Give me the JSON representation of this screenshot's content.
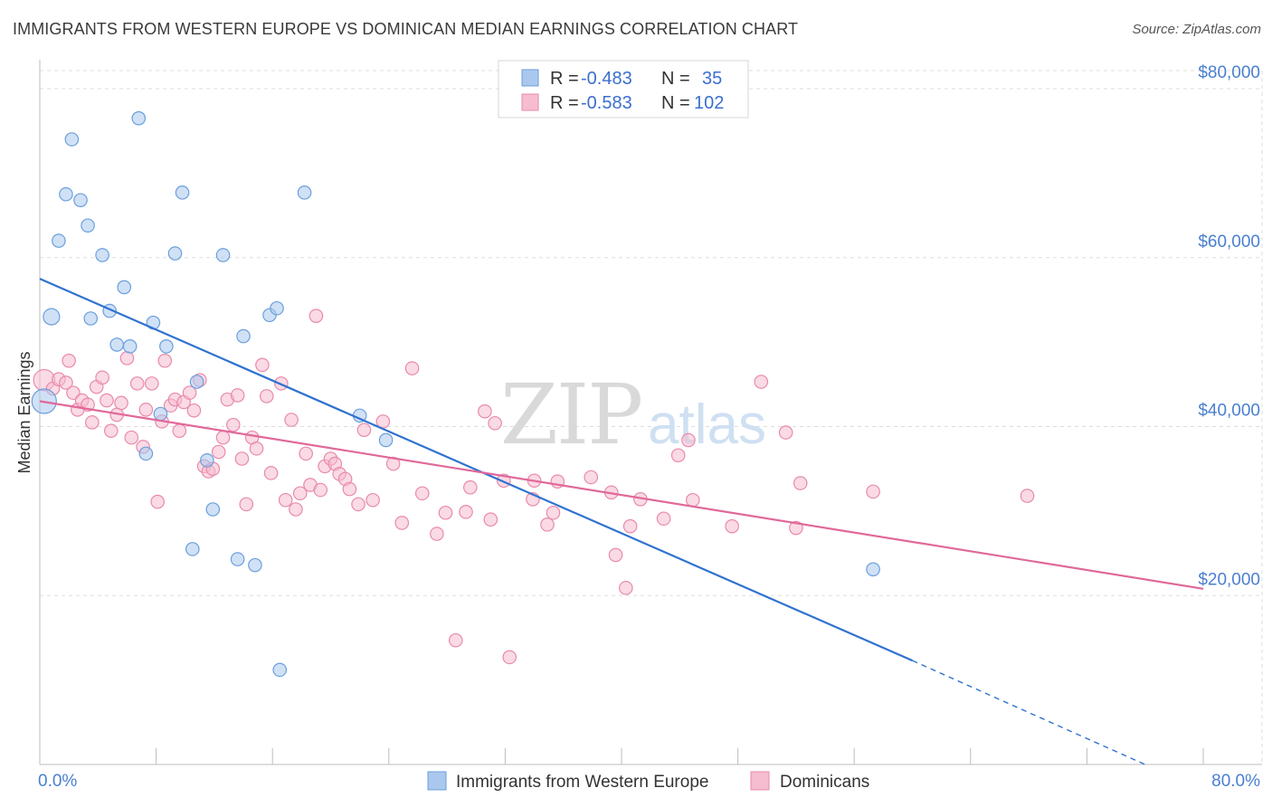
{
  "header": {
    "title": "IMMIGRANTS FROM WESTERN EUROPE VS DOMINICAN MEDIAN EARNINGS CORRELATION CHART",
    "source": "Source: ZipAtlas.com"
  },
  "watermark": {
    "zip": "ZIP",
    "atlas": "atlas"
  },
  "legend": {
    "rows": [
      {
        "r_label": "R =",
        "r_value": "-0.483",
        "n_label": "N =",
        "n_value": "35"
      },
      {
        "r_label": "R =",
        "r_value": "-0.583",
        "n_label": "N =",
        "n_value": "102"
      }
    ]
  },
  "colors": {
    "blue_fill": "#aac8ee",
    "blue_stroke": "#6b9fdc",
    "blue_line": "#2f72d1",
    "pink_fill": "#f6bcd0",
    "pink_stroke": "#e98aab",
    "pink_line": "#e0699a",
    "grid": "#dddddd",
    "tick_label": "#4a7fd0"
  },
  "chart_data": {
    "type": "scatter",
    "title": "IMMIGRANTS FROM WESTERN EUROPE VS DOMINICAN MEDIAN EARNINGS CORRELATION CHART",
    "xlabel": "",
    "ylabel": "Median Earnings",
    "xlim": [
      0,
      80
    ],
    "ylim": [
      0,
      83000
    ],
    "x_tick_labels": [
      "0.0%",
      "80.0%"
    ],
    "y_ticks": [
      20000,
      40000,
      60000,
      80000
    ],
    "y_tick_labels": [
      "$20,000",
      "$40,000",
      "$60,000",
      "$80,000"
    ],
    "grid": true,
    "legend_position": "top-center",
    "series": [
      {
        "name": "Immigrants from Western Europe",
        "color": "blue",
        "r": -0.483,
        "n": 35,
        "points": [
          [
            0.3,
            43000,
            1.5
          ],
          [
            0.8,
            53000,
            1.0
          ],
          [
            1.3,
            62000,
            0.8
          ],
          [
            1.8,
            67500,
            0.8
          ],
          [
            2.2,
            74000,
            0.8
          ],
          [
            2.8,
            66800,
            0.8
          ],
          [
            3.3,
            63800,
            0.8
          ],
          [
            3.5,
            52800,
            0.8
          ],
          [
            4.3,
            60300,
            0.8
          ],
          [
            4.8,
            53700,
            0.8
          ],
          [
            5.3,
            49700,
            0.8
          ],
          [
            5.8,
            56500,
            0.8
          ],
          [
            6.2,
            49500,
            0.8
          ],
          [
            6.8,
            76500,
            0.8
          ],
          [
            7.3,
            36800,
            0.8
          ],
          [
            7.8,
            52300,
            0.8
          ],
          [
            8.3,
            41500,
            0.8
          ],
          [
            8.7,
            49500,
            0.8
          ],
          [
            9.3,
            60500,
            0.8
          ],
          [
            9.8,
            67700,
            0.8
          ],
          [
            10.5,
            25500,
            0.8
          ],
          [
            10.8,
            45300,
            0.8
          ],
          [
            11.5,
            36000,
            0.8
          ],
          [
            11.9,
            30200,
            0.8
          ],
          [
            12.6,
            60300,
            0.8
          ],
          [
            13.6,
            24300,
            0.8
          ],
          [
            14.0,
            50700,
            0.8
          ],
          [
            14.8,
            23600,
            0.8
          ],
          [
            15.8,
            53200,
            0.8
          ],
          [
            16.3,
            54000,
            0.8
          ],
          [
            16.5,
            11200,
            0.8
          ],
          [
            18.2,
            67700,
            0.8
          ],
          [
            22.0,
            41300,
            0.8
          ],
          [
            23.8,
            38400,
            0.8
          ],
          [
            57.3,
            23100,
            0.8
          ]
        ],
        "trend": {
          "x0": 0,
          "y0": 57500,
          "x1": 60,
          "y1": 12300,
          "dashed_to_x": 76,
          "dashed_to_y": 0
        }
      },
      {
        "name": "Dominicans",
        "color": "pink",
        "r": -0.583,
        "n": 102,
        "points": [
          [
            0.3,
            45500,
            1.3
          ],
          [
            0.9,
            44500,
            0.8
          ],
          [
            1.3,
            45600,
            0.8
          ],
          [
            1.8,
            45200,
            0.8
          ],
          [
            2.0,
            47800,
            0.8
          ],
          [
            2.3,
            44000,
            0.8
          ],
          [
            2.6,
            42000,
            0.8
          ],
          [
            2.9,
            43100,
            0.8
          ],
          [
            3.3,
            42600,
            0.8
          ],
          [
            3.6,
            40500,
            0.8
          ],
          [
            3.9,
            44700,
            0.8
          ],
          [
            4.3,
            45800,
            0.8
          ],
          [
            4.6,
            43100,
            0.8
          ],
          [
            4.9,
            39500,
            0.8
          ],
          [
            5.3,
            41400,
            0.8
          ],
          [
            5.6,
            42800,
            0.8
          ],
          [
            6.0,
            48100,
            0.8
          ],
          [
            6.3,
            38700,
            0.8
          ],
          [
            6.7,
            45100,
            0.8
          ],
          [
            7.1,
            37600,
            0.8
          ],
          [
            7.3,
            42000,
            0.8
          ],
          [
            7.7,
            45100,
            0.8
          ],
          [
            8.1,
            31100,
            0.8
          ],
          [
            8.4,
            40600,
            0.8
          ],
          [
            8.6,
            47800,
            0.8
          ],
          [
            9.0,
            42500,
            0.8
          ],
          [
            9.3,
            43200,
            0.8
          ],
          [
            9.6,
            39500,
            0.8
          ],
          [
            9.9,
            42900,
            0.8
          ],
          [
            10.3,
            44000,
            0.8
          ],
          [
            10.6,
            41900,
            0.8
          ],
          [
            11.0,
            45500,
            0.8
          ],
          [
            11.3,
            35300,
            0.8
          ],
          [
            11.6,
            34700,
            0.8
          ],
          [
            11.9,
            35000,
            0.8
          ],
          [
            12.3,
            37000,
            0.8
          ],
          [
            12.6,
            38700,
            0.8
          ],
          [
            12.9,
            43200,
            0.8
          ],
          [
            13.3,
            40200,
            0.8
          ],
          [
            13.6,
            43700,
            0.8
          ],
          [
            13.9,
            36200,
            0.8
          ],
          [
            14.2,
            30800,
            0.8
          ],
          [
            14.6,
            38700,
            0.8
          ],
          [
            14.9,
            37400,
            0.8
          ],
          [
            15.3,
            47300,
            0.8
          ],
          [
            15.6,
            43600,
            0.8
          ],
          [
            15.9,
            34500,
            0.8
          ],
          [
            16.6,
            45100,
            0.8
          ],
          [
            16.9,
            31300,
            0.8
          ],
          [
            17.3,
            40800,
            0.8
          ],
          [
            17.6,
            30200,
            0.8
          ],
          [
            17.9,
            32100,
            0.8
          ],
          [
            18.3,
            36800,
            0.8
          ],
          [
            18.6,
            33100,
            0.8
          ],
          [
            19.0,
            53100,
            0.8
          ],
          [
            19.3,
            32500,
            0.8
          ],
          [
            19.6,
            35300,
            0.8
          ],
          [
            20.0,
            36200,
            0.8
          ],
          [
            20.3,
            35600,
            0.8
          ],
          [
            20.6,
            34400,
            0.8
          ],
          [
            21.0,
            33800,
            0.8
          ],
          [
            21.3,
            32600,
            0.8
          ],
          [
            21.9,
            30800,
            0.8
          ],
          [
            22.3,
            39600,
            0.8
          ],
          [
            22.9,
            31300,
            0.8
          ],
          [
            23.6,
            40600,
            0.8
          ],
          [
            24.3,
            35600,
            0.8
          ],
          [
            24.9,
            28600,
            0.8
          ],
          [
            25.6,
            46900,
            0.8
          ],
          [
            26.3,
            32100,
            0.8
          ],
          [
            27.3,
            27300,
            0.8
          ],
          [
            27.9,
            29800,
            0.8
          ],
          [
            28.6,
            14700,
            0.8
          ],
          [
            29.3,
            29900,
            0.8
          ],
          [
            29.6,
            32800,
            0.8
          ],
          [
            30.6,
            41800,
            0.8
          ],
          [
            31.3,
            40400,
            0.8
          ],
          [
            31.0,
            29000,
            0.8
          ],
          [
            31.9,
            33600,
            0.8
          ],
          [
            32.3,
            12700,
            0.8
          ],
          [
            33.9,
            31400,
            0.8
          ],
          [
            34.0,
            33600,
            0.8
          ],
          [
            34.9,
            28400,
            0.8
          ],
          [
            35.3,
            29800,
            0.8
          ],
          [
            35.6,
            33500,
            0.8
          ],
          [
            37.9,
            34000,
            0.8
          ],
          [
            39.3,
            32200,
            0.8
          ],
          [
            39.6,
            24800,
            0.8
          ],
          [
            40.3,
            20900,
            0.8
          ],
          [
            40.6,
            28200,
            0.8
          ],
          [
            41.3,
            31400,
            0.8
          ],
          [
            42.9,
            29100,
            0.8
          ],
          [
            43.9,
            36600,
            0.8
          ],
          [
            44.6,
            38400,
            0.8
          ],
          [
            44.9,
            31300,
            0.8
          ],
          [
            47.6,
            28200,
            0.8
          ],
          [
            49.6,
            45300,
            0.8
          ],
          [
            51.3,
            39300,
            0.8
          ],
          [
            52.0,
            28000,
            0.8
          ],
          [
            52.3,
            33300,
            0.8
          ],
          [
            57.3,
            32300,
            0.8
          ],
          [
            67.9,
            31800,
            0.8
          ]
        ],
        "trend": {
          "x0": 0,
          "y0": 43000,
          "x1": 80,
          "y1": 20800
        }
      }
    ]
  }
}
